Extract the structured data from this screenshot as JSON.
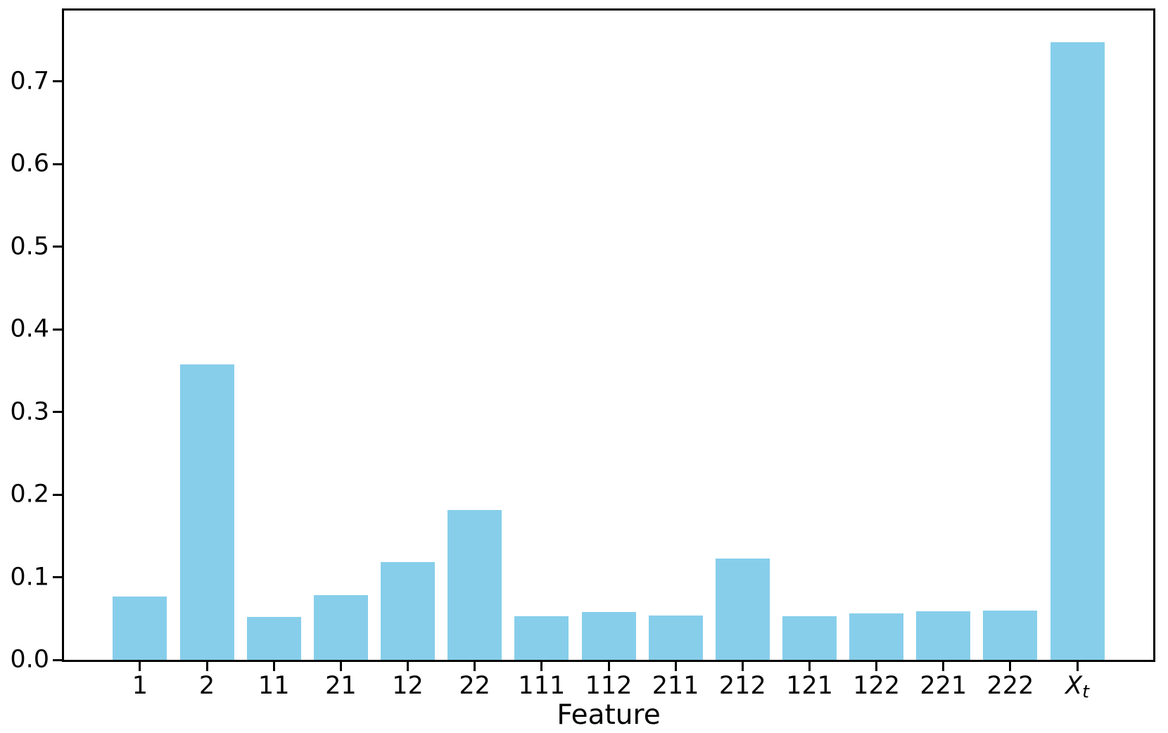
{
  "chart_data": {
    "type": "bar",
    "title": "",
    "xlabel": "Feature",
    "ylabel": "",
    "categories": [
      "1",
      "2",
      "11",
      "21",
      "12",
      "22",
      "111",
      "112",
      "211",
      "212",
      "121",
      "122",
      "221",
      "222",
      "X_t"
    ],
    "values": [
      0.077,
      0.358,
      0.052,
      0.078,
      0.118,
      0.181,
      0.053,
      0.058,
      0.054,
      0.123,
      0.053,
      0.056,
      0.059,
      0.06,
      0.748
    ],
    "yticks": [
      0.0,
      0.1,
      0.2,
      0.3,
      0.4,
      0.5,
      0.6,
      0.7
    ],
    "ytick_labels": [
      "0.0",
      "0.1",
      "0.2",
      "0.3",
      "0.4",
      "0.5",
      "0.6",
      "0.7"
    ],
    "ylim": [
      0,
      0.786
    ],
    "bar_color": "#87CEEB",
    "axis_color": "#000000",
    "background_color": "#ffffff",
    "grid": false,
    "legend": null
  }
}
